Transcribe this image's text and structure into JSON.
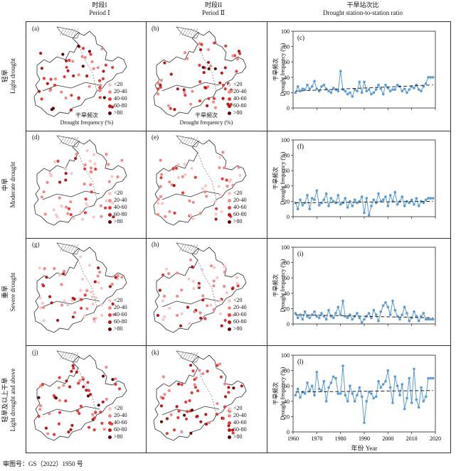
{
  "headers": {
    "col1_cn": "时段I",
    "col1_en": "Period Ⅰ",
    "col2_cn": "时段II",
    "col2_en": "Period Ⅱ",
    "col3_cn": "干旱站次比",
    "col3_en": "Drought station-to-station ratio"
  },
  "rows": [
    {
      "cn": "轻旱",
      "en": "Light drought"
    },
    {
      "cn": "中旱",
      "en": "Moderate drought"
    },
    {
      "cn": "重旱",
      "en": "Severe drought"
    },
    {
      "cn": "轻旱及以上干旱",
      "en": "Light drought and above"
    }
  ],
  "panel_labels": [
    "(a)",
    "(b)",
    "(c)",
    "(d)",
    "(e)",
    "(f)",
    "(g)",
    "(h)",
    "(i)",
    "(j)",
    "(k)",
    "(l)"
  ],
  "map_legend": {
    "classes": [
      "<20",
      "20-40",
      "40-60",
      "60-80",
      ">80"
    ],
    "colors": [
      "#f8c6c6",
      "#f08a8a",
      "#e23b3b",
      "#b51818",
      "#5a0606"
    ]
  },
  "map_caption_cn": "干旱频次",
  "map_caption_en": "Drought frequency (%)",
  "chart_ylabel_cn": "干旱频次",
  "chart_ylabel_en": "Drought frequency (%)",
  "chart_xlabel": "年份 Year",
  "footer": "审图号：GS（2022）1950 号",
  "chart_data": [
    {
      "type": "line",
      "panel": "(c)",
      "x_start": 1961,
      "x_end": 2019,
      "ylim": [
        0,
        100
      ],
      "yticks": [
        0,
        20,
        40,
        60,
        80,
        100
      ],
      "series": [
        {
          "values": [
            20,
            28,
            22,
            25,
            24,
            30,
            25,
            28,
            35,
            25,
            22,
            28,
            30,
            25,
            22,
            20,
            26,
            24,
            22,
            48,
            24,
            22,
            18,
            20,
            15,
            24,
            22,
            34,
            20,
            34,
            22,
            24,
            18,
            20,
            24,
            30,
            25,
            18,
            30,
            26,
            22,
            24,
            24,
            30,
            28,
            22,
            25,
            20,
            24,
            28,
            26,
            30,
            24,
            22,
            28,
            32,
            40,
            40,
            40
          ]
        },
        {
          "name": "",
          "values": [
            22,
            30
          ],
          "kind": "trend"
        }
      ]
    },
    {
      "type": "line",
      "panel": "(f)",
      "x_start": 1961,
      "x_end": 2019,
      "ylim": [
        0,
        100
      ],
      "yticks": [
        0,
        20,
        40,
        60,
        80,
        100
      ],
      "series": [
        {
          "values": [
            18,
            10,
            22,
            15,
            18,
            28,
            10,
            24,
            22,
            34,
            15,
            18,
            22,
            30,
            14,
            24,
            20,
            18,
            28,
            16,
            18,
            24,
            12,
            20,
            14,
            22,
            18,
            20,
            26,
            5,
            24,
            2,
            14,
            22,
            18,
            30,
            20,
            22,
            26,
            14,
            28,
            20,
            32,
            16,
            20,
            26,
            14,
            20,
            18,
            22,
            16,
            24,
            14,
            20,
            18,
            22,
            24,
            24,
            24
          ]
        },
        {
          "name": "",
          "values": [
            18,
            20
          ],
          "kind": "trend"
        }
      ]
    },
    {
      "type": "line",
      "panel": "(i)",
      "x_start": 1961,
      "x_end": 2019,
      "ylim": [
        0,
        100
      ],
      "yticks": [
        0,
        20,
        40,
        60,
        80,
        100
      ],
      "series": [
        {
          "values": [
            14,
            8,
            12,
            6,
            16,
            10,
            8,
            12,
            16,
            10,
            8,
            14,
            10,
            6,
            18,
            10,
            8,
            14,
            22,
            12,
            30,
            10,
            8,
            12,
            6,
            10,
            14,
            8,
            2,
            6,
            10,
            14,
            8,
            18,
            12,
            4,
            16,
            24,
            28,
            22,
            12,
            30,
            18,
            10,
            6,
            12,
            22,
            14,
            4,
            8,
            16,
            10,
            4,
            10,
            14,
            6,
            6,
            6,
            6
          ]
        },
        {
          "name": "",
          "values": [
            12,
            8
          ],
          "kind": "trend"
        }
      ]
    },
    {
      "type": "line",
      "panel": "(l)",
      "x_start": 1961,
      "x_end": 2019,
      "ylim": [
        0,
        100
      ],
      "yticks": [
        0,
        20,
        40,
        60,
        80,
        100
      ],
      "xticks": [
        1960,
        1970,
        1980,
        1990,
        2000,
        2010,
        2020
      ],
      "series": [
        {
          "values": [
            48,
            56,
            45,
            52,
            50,
            64,
            54,
            60,
            48,
            78,
            56,
            54,
            66,
            40,
            58,
            64,
            72,
            70,
            50,
            50,
            86,
            48,
            40,
            60,
            50,
            40,
            48,
            58,
            46,
            12,
            40,
            52,
            50,
            44,
            46,
            66,
            58,
            62,
            66,
            80,
            58,
            38,
            72,
            60,
            48,
            62,
            30,
            44,
            70,
            38,
            82,
            42,
            32,
            58,
            40,
            46,
            70,
            70,
            70
          ]
        },
        {
          "name": "",
          "values": [
            52,
            54
          ],
          "kind": "trend"
        }
      ]
    }
  ]
}
